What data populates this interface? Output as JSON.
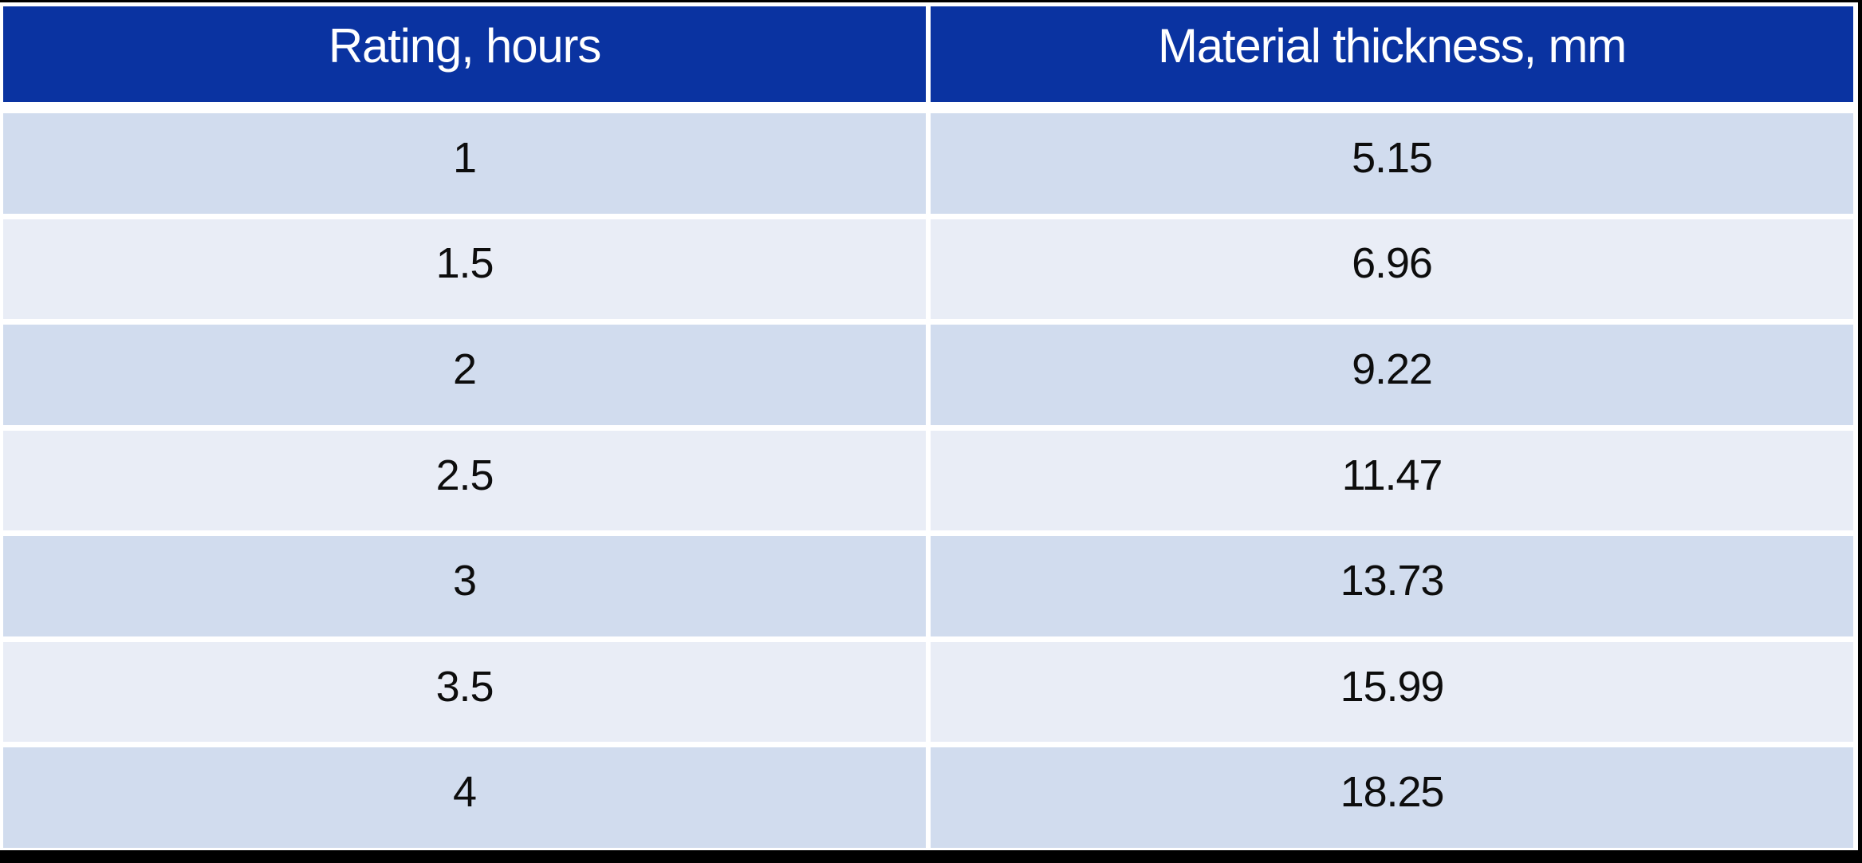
{
  "colors": {
    "header_bg": "#0A33A1",
    "header_text": "#FFFFFF",
    "row_odd_bg": "#D1DCEE",
    "row_even_bg": "#E9EDF6",
    "cell_text": "#0D0D0D",
    "frame_border": "#000000",
    "background": "#FFFFFF"
  },
  "table": {
    "columns": [
      "Rating, hours",
      "Material thickness, mm"
    ],
    "rows": [
      [
        "1",
        "5.15"
      ],
      [
        "1.5",
        "6.96"
      ],
      [
        "2",
        "9.22"
      ],
      [
        "2.5",
        "11.47"
      ],
      [
        "3",
        "13.73"
      ],
      [
        "3.5",
        "15.99"
      ],
      [
        "4",
        "18.25"
      ]
    ]
  },
  "chart_data": {
    "type": "table",
    "title": "",
    "columns": [
      "Rating, hours",
      "Material thickness, mm"
    ],
    "rows": [
      [
        1,
        5.15
      ],
      [
        1.5,
        6.96
      ],
      [
        2,
        9.22
      ],
      [
        2.5,
        11.47
      ],
      [
        3,
        13.73
      ],
      [
        3.5,
        15.99
      ],
      [
        4,
        18.25
      ]
    ],
    "layout_hints": {
      "header_row": true,
      "banded_rows": true,
      "cell_alignment": "center"
    }
  }
}
